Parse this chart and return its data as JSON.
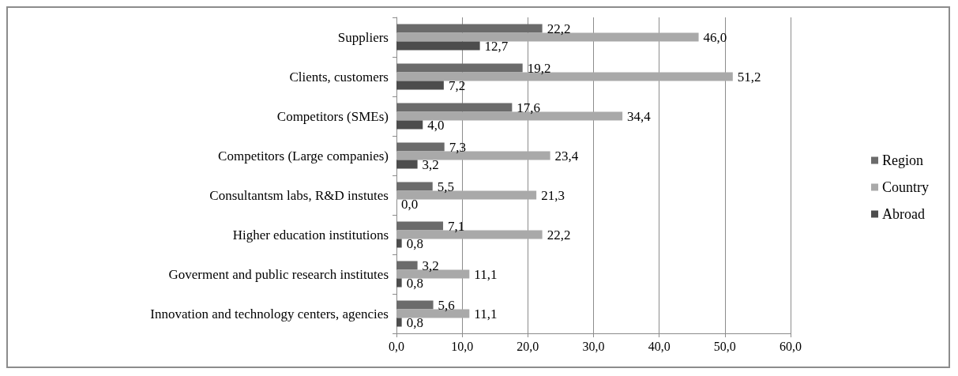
{
  "chart_data": {
    "type": "bar",
    "orientation": "horizontal",
    "categories": [
      "Suppliers",
      "Clients, customers",
      "Competitors (SMEs)",
      "Competitors (Large companies)",
      "Consultantsm labs, R&D instutes",
      "Higher education institutions",
      "Goverment and public research institutes",
      "Innovation and technology centers, agencies"
    ],
    "series": [
      {
        "name": "Region",
        "color": "#6b6b6b",
        "values": [
          22.2,
          19.2,
          17.6,
          7.3,
          5.5,
          7.1,
          3.2,
          5.6
        ],
        "value_labels": [
          "22,2",
          "19,2",
          "17,6",
          "7,3",
          "5,5",
          "7,1",
          "3,2",
          "5,6"
        ]
      },
      {
        "name": "Country",
        "color": "#a9a9a9",
        "values": [
          46.0,
          51.2,
          34.4,
          23.4,
          21.3,
          22.2,
          11.1,
          11.1
        ],
        "value_labels": [
          "46,0",
          "51,2",
          "34,4",
          "23,4",
          "21,3",
          "22,2",
          "11,1",
          "11,1"
        ]
      },
      {
        "name": "Abroad",
        "color": "#4d4d4d",
        "values": [
          12.7,
          7.2,
          4.0,
          3.2,
          0.0,
          0.8,
          0.8,
          0.8
        ],
        "value_labels": [
          "12,7",
          "7,2",
          "4,0",
          "3,2",
          "0,0",
          "0,8",
          "0,8",
          "0,8"
        ]
      }
    ],
    "xlim": [
      0,
      60
    ],
    "xticks": [
      {
        "value": 0,
        "label": "0,0"
      },
      {
        "value": 10,
        "label": "10,0"
      },
      {
        "value": 20,
        "label": "20,0"
      },
      {
        "value": 30,
        "label": "30,0"
      },
      {
        "value": 40,
        "label": "40,0"
      },
      {
        "value": 50,
        "label": "50,0"
      },
      {
        "value": 60,
        "label": "60,0"
      }
    ],
    "grid": "x",
    "legend": "right"
  }
}
